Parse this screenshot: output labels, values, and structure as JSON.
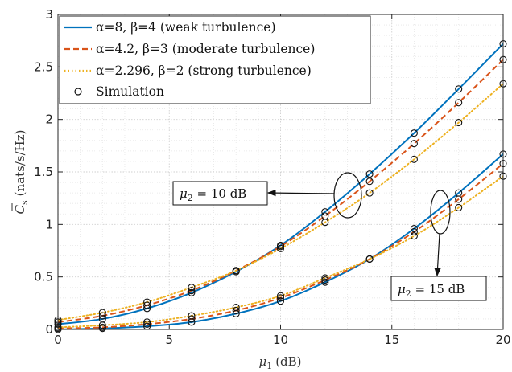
{
  "chart_data": {
    "type": "line",
    "xlabel_symbol": "μ",
    "xlabel_sub": "1",
    "xlabel_unit": "(dB)",
    "ylabel_symbol": "C",
    "ylabel_sub": "s",
    "ylabel_unit": "(nats/s/Hz)",
    "xlim": [
      0,
      20
    ],
    "ylim": [
      0,
      3
    ],
    "xticks": [
      0,
      5,
      10,
      15,
      20
    ],
    "yticks": [
      0,
      0.5,
      1,
      1.5,
      2,
      2.5,
      3
    ],
    "xtick_labels": [
      "0",
      "5",
      "10",
      "15",
      "20"
    ],
    "ytick_labels": [
      "0",
      "0.5",
      "1",
      "1.5",
      "2",
      "2.5",
      "3"
    ],
    "grid": true,
    "legend_position": "top-left",
    "x": [
      0,
      2,
      4,
      6,
      8,
      10,
      12,
      14,
      16,
      18,
      20
    ],
    "series": [
      {
        "name": "α=8, β=4 (weak turbulence)",
        "color": "#0072BD",
        "style": "solid",
        "group": "mu2=10",
        "values": [
          0.05,
          0.1,
          0.2,
          0.35,
          0.55,
          0.8,
          1.12,
          1.48,
          1.87,
          2.29,
          2.72
        ]
      },
      {
        "name": "α=4.2, β=3 (moderate turbulence)",
        "color": "#D95319",
        "style": "dashed",
        "group": "mu2=10",
        "values": [
          0.07,
          0.13,
          0.23,
          0.37,
          0.56,
          0.79,
          1.08,
          1.41,
          1.77,
          2.16,
          2.57
        ]
      },
      {
        "name": "α=2.296, β=2 (strong turbulence)",
        "color": "#EDB120",
        "style": "dotted",
        "group": "mu2=10",
        "values": [
          0.09,
          0.16,
          0.26,
          0.4,
          0.56,
          0.77,
          1.02,
          1.3,
          1.62,
          1.97,
          2.34
        ]
      },
      {
        "name": "α=8, β=4 (weak turbulence)",
        "color": "#0072BD",
        "style": "solid",
        "group": "mu2=15",
        "values": [
          0.0,
          0.01,
          0.03,
          0.07,
          0.15,
          0.27,
          0.45,
          0.67,
          0.96,
          1.3,
          1.67
        ]
      },
      {
        "name": "α=4.2, β=3 (moderate turbulence)",
        "color": "#D95319",
        "style": "dashed",
        "group": "mu2=15",
        "values": [
          0.01,
          0.02,
          0.05,
          0.1,
          0.18,
          0.3,
          0.47,
          0.67,
          0.93,
          1.24,
          1.58
        ]
      },
      {
        "name": "α=2.296, β=2 (strong turbulence)",
        "color": "#EDB120",
        "style": "dotted",
        "group": "mu2=15",
        "values": [
          0.02,
          0.04,
          0.07,
          0.13,
          0.21,
          0.32,
          0.49,
          0.67,
          0.89,
          1.16,
          1.46
        ]
      }
    ],
    "legend": [
      {
        "label": "α=8, β=4 (weak turbulence)",
        "style": "solid",
        "color": "#0072BD"
      },
      {
        "label": "α=4.2, β=3 (moderate turbulence)",
        "style": "dashed",
        "color": "#D95319"
      },
      {
        "label": "α=2.296, β=2 (strong turbulence)",
        "style": "dotted",
        "color": "#EDB120"
      },
      {
        "label": "Simulation",
        "style": "marker-circle",
        "color": "#000000"
      }
    ],
    "annotations": [
      {
        "text": "μ2 = 10 dB",
        "symbol": "μ",
        "sub": "2",
        "rest": " = 10 dB"
      },
      {
        "text": "μ2 = 15 dB",
        "symbol": "μ",
        "sub": "2",
        "rest": " = 15 dB"
      }
    ]
  }
}
